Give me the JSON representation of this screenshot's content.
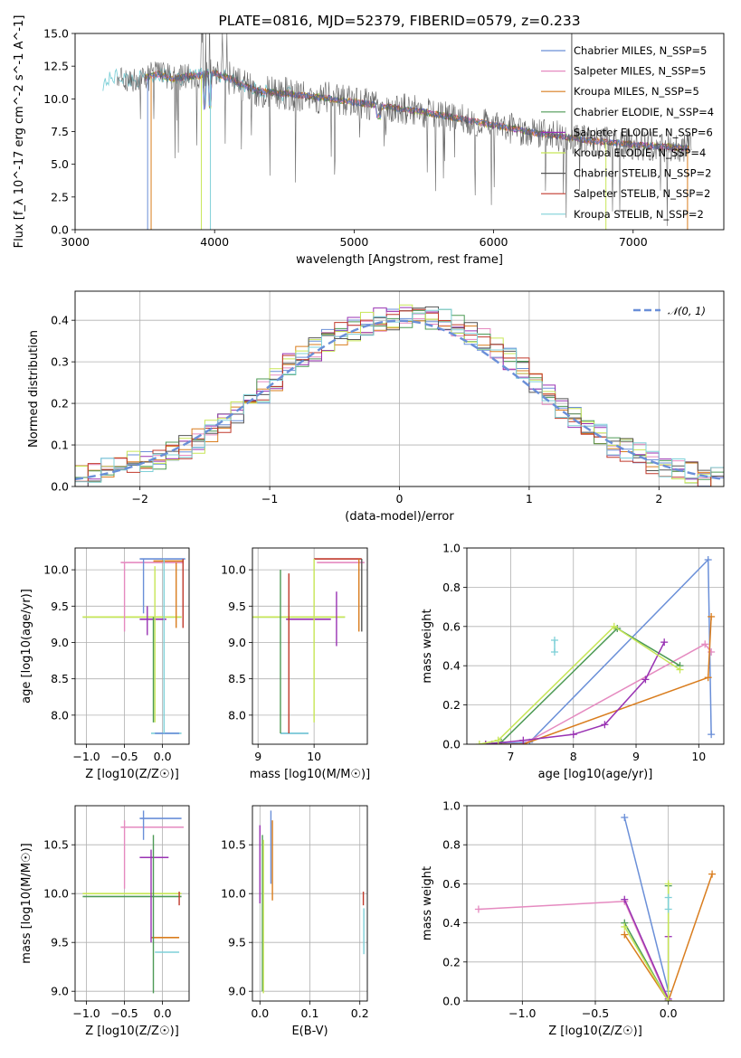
{
  "figure": {
    "title": "PLATE=0816, MJD=52379, FIBERID=0579, z=0.233"
  },
  "chart_data": [
    {
      "type": "line",
      "panel": "spectrum",
      "title": "PLATE=0816, MJD=52379, FIBERID=0579, z=0.233",
      "xlabel": "wavelength [Angstrom, rest frame]",
      "ylabel": "Flux [f_λ 10^-17 erg cm^-2 s^-1 A^-1]",
      "xlim": [
        3000,
        7650
      ],
      "ylim": [
        0,
        15
      ],
      "xticks": [
        3000,
        4000,
        5000,
        6000,
        7000
      ],
      "yticks": [
        0.0,
        2.5,
        5.0,
        7.5,
        10.0,
        12.5,
        15.0
      ],
      "grid": false,
      "legend_placement": "upper-right",
      "series": [
        {
          "name": "Chabrier MILES, N_SSP=5",
          "color": "#6a8fd8"
        },
        {
          "name": "Salpeter MILES, N_SSP=5",
          "color": "#e58ac0"
        },
        {
          "name": "Kroupa MILES, N_SSP=5",
          "color": "#d97d1e"
        },
        {
          "name": "Chabrier ELODIE, N_SSP=4",
          "color": "#4d9a55"
        },
        {
          "name": "Salpeter ELODIE, N_SSP=6",
          "color": "#9932b3"
        },
        {
          "name": "Kroupa ELODIE, N_SSP=4",
          "color": "#c7e656"
        },
        {
          "name": "Chabrier STELIB, N_SSP=2",
          "color": "#555555"
        },
        {
          "name": "Salpeter STELIB, N_SSP=2",
          "color": "#c0392b"
        },
        {
          "name": "Kroupa STELIB, N_SSP=2",
          "color": "#7fd0d8"
        }
      ],
      "continuum_points": {
        "x": [
          3200,
          3300,
          3400,
          3500,
          3600,
          3700,
          3800,
          3900,
          4000,
          4100,
          4200,
          4300,
          4400,
          4500,
          4700,
          4900,
          5100,
          5300,
          5500,
          5700,
          5900,
          6100,
          6300,
          6500,
          6700,
          6900,
          7100,
          7300,
          7400
        ],
        "y": [
          11.2,
          11.8,
          11.4,
          11.6,
          11.9,
          11.5,
          11.7,
          11.8,
          12.0,
          11.6,
          11.1,
          10.6,
          10.5,
          10.4,
          10.2,
          9.9,
          9.6,
          9.3,
          9.0,
          8.6,
          8.2,
          7.8,
          7.4,
          7.1,
          6.8,
          6.6,
          6.4,
          6.3,
          6.2
        ]
      }
    },
    {
      "type": "bar",
      "panel": "residual-histogram",
      "xlabel": "(data-model)/error",
      "ylabel": "Normed distribution",
      "xlim": [
        -2.5,
        2.5
      ],
      "ylim": [
        0,
        0.47
      ],
      "xticks": [
        -2,
        -1,
        0,
        1,
        2
      ],
      "yticks": [
        0.0,
        0.1,
        0.2,
        0.3,
        0.4
      ],
      "grid": true,
      "legend_placement": "upper-right",
      "legend": [
        "𝒩(0, 1)"
      ],
      "bin_edges": [
        -2.5,
        -2.4,
        -2.3,
        -2.2,
        -2.1,
        -2.0,
        -1.9,
        -1.8,
        -1.7,
        -1.6,
        -1.5,
        -1.4,
        -1.3,
        -1.2,
        -1.1,
        -1.0,
        -0.9,
        -0.8,
        -0.7,
        -0.6,
        -0.5,
        -0.4,
        -0.3,
        -0.2,
        -0.1,
        0.0,
        0.1,
        0.2,
        0.3,
        0.4,
        0.5,
        0.6,
        0.7,
        0.8,
        0.9,
        1.0,
        1.1,
        1.2,
        1.3,
        1.4,
        1.5,
        1.6,
        1.7,
        1.8,
        1.9,
        2.0,
        2.1,
        2.2,
        2.3,
        2.4,
        2.5
      ],
      "envelope": [
        0.02,
        0.03,
        0.04,
        0.045,
        0.055,
        0.06,
        0.07,
        0.08,
        0.095,
        0.11,
        0.13,
        0.15,
        0.18,
        0.2,
        0.23,
        0.26,
        0.29,
        0.31,
        0.33,
        0.35,
        0.365,
        0.38,
        0.39,
        0.4,
        0.405,
        0.41,
        0.41,
        0.405,
        0.4,
        0.39,
        0.37,
        0.35,
        0.33,
        0.31,
        0.28,
        0.25,
        0.22,
        0.19,
        0.17,
        0.14,
        0.12,
        0.1,
        0.09,
        0.075,
        0.06,
        0.05,
        0.04,
        0.035,
        0.025,
        0.02
      ],
      "normal_pdf": {
        "mean": 0,
        "sigma": 1
      }
    },
    {
      "type": "scatter",
      "panel": "age-vs-Z",
      "xlabel": "Z [log10(Z/Z☉)]",
      "ylabel": "age [log10(age/yr)]",
      "xlim": [
        -1.15,
        0.35
      ],
      "ylim": [
        7.6,
        10.3
      ],
      "xticks": [
        -1.0,
        -0.5,
        0.0
      ],
      "yticks": [
        8.0,
        8.5,
        9.0,
        9.5,
        10.0
      ],
      "grid": true,
      "hbars": [
        {
          "color": "#6a8fd8",
          "x1": -0.3,
          "x2": 0.3,
          "y": 10.15
        },
        {
          "color": "#e58ac0",
          "x1": -0.55,
          "x2": 0.28,
          "y": 10.1
        },
        {
          "color": "#d97d1e",
          "x1": -0.12,
          "x2": 0.28,
          "y": 10.12
        },
        {
          "color": "#4d9a55",
          "x1": -1.05,
          "x2": 0.25,
          "y": 9.35
        },
        {
          "color": "#c7e656",
          "x1": -1.05,
          "x2": 0.25,
          "y": 9.35
        },
        {
          "color": "#9932b3",
          "x1": -0.3,
          "x2": 0.05,
          "y": 9.32
        },
        {
          "color": "#7fd0d8",
          "x1": -0.15,
          "x2": 0.25,
          "y": 7.75
        },
        {
          "color": "#6a8fd8",
          "x1": -0.1,
          "x2": 0.22,
          "y": 7.75
        }
      ],
      "vbars": [
        {
          "color": "#6a8fd8",
          "x": -0.25,
          "y1": 9.4,
          "y2": 10.15
        },
        {
          "color": "#e58ac0",
          "x": -0.5,
          "y1": 9.15,
          "y2": 10.1
        },
        {
          "color": "#d97d1e",
          "x": 0.18,
          "y1": 9.2,
          "y2": 10.1
        },
        {
          "color": "#4d9a55",
          "x": -0.12,
          "y1": 7.9,
          "y2": 9.35
        },
        {
          "color": "#9932b3",
          "x": -0.2,
          "y1": 9.1,
          "y2": 9.5
        },
        {
          "color": "#c0392b",
          "x": 0.27,
          "y1": 9.2,
          "y2": 10.15
        },
        {
          "color": "#7fd0d8",
          "x": 0.02,
          "y1": 7.75,
          "y2": 10.15
        },
        {
          "color": "#c7e656",
          "x": -0.1,
          "y1": 7.9,
          "y2": 10.05
        }
      ]
    },
    {
      "type": "scatter",
      "panel": "age-vs-mass",
      "xlabel": "mass [log10(M/M☉)]",
      "ylabel": "",
      "xlim": [
        8.9,
        10.95
      ],
      "ylim": [
        7.6,
        10.3
      ],
      "xticks": [
        9,
        10
      ],
      "yticks": [
        8.0,
        8.5,
        9.0,
        9.5,
        10.0
      ],
      "grid": true,
      "hbars": [
        {
          "color": "#4d9a55",
          "x1": 8.9,
          "x2": 10.55,
          "y": 9.35
        },
        {
          "color": "#c7e656",
          "x1": 8.9,
          "x2": 10.55,
          "y": 9.35
        },
        {
          "color": "#9932b3",
          "x1": 9.5,
          "x2": 10.3,
          "y": 9.32
        },
        {
          "color": "#e58ac0",
          "x1": 10.05,
          "x2": 10.9,
          "y": 10.1
        },
        {
          "color": "#c0392b",
          "x1": 10.0,
          "x2": 10.85,
          "y": 10.15
        },
        {
          "color": "#6a8fd8",
          "x1": 9.4,
          "x2": 9.9,
          "y": 7.75
        },
        {
          "color": "#7fd0d8",
          "x1": 9.4,
          "x2": 9.9,
          "y": 7.75
        }
      ],
      "vbars": [
        {
          "color": "#4d9a55",
          "x": 9.4,
          "y1": 7.75,
          "y2": 10.0
        },
        {
          "color": "#c0392b",
          "x": 9.55,
          "y1": 7.75,
          "y2": 9.95
        },
        {
          "color": "#c7e656",
          "x": 10.0,
          "y1": 7.9,
          "y2": 10.15
        },
        {
          "color": "#9932b3",
          "x": 10.4,
          "y1": 8.95,
          "y2": 9.7
        },
        {
          "color": "#d97d1e",
          "x": 10.8,
          "y1": 9.15,
          "y2": 10.15
        },
        {
          "color": "#555555",
          "x": 10.85,
          "y1": 9.15,
          "y2": 10.15
        }
      ]
    },
    {
      "type": "line",
      "panel": "mass-weight-vs-age",
      "xlabel": "age [log10(age/yr)]",
      "ylabel": "mass weight",
      "xlim": [
        6.3,
        10.4
      ],
      "ylim": [
        0,
        1
      ],
      "xticks": [
        7,
        8,
        9,
        10
      ],
      "yticks": [
        0.0,
        0.2,
        0.4,
        0.6,
        0.8,
        1.0
      ],
      "grid": true,
      "series": [
        {
          "name": "",
          "color": "#6a8fd8",
          "x": [
            6.7,
            7.3,
            10.15,
            10.2
          ],
          "y": [
            0.0,
            0.01,
            0.94,
            0.05
          ]
        },
        {
          "name": "",
          "color": "#e58ac0",
          "x": [
            6.7,
            7.2,
            10.1,
            10.2
          ],
          "y": [
            0.0,
            0.0,
            0.51,
            0.47
          ]
        },
        {
          "name": "",
          "color": "#d97d1e",
          "x": [
            6.6,
            7.2,
            10.15,
            10.2
          ],
          "y": [
            0.0,
            0.0,
            0.34,
            0.65
          ]
        },
        {
          "name": "",
          "color": "#4d9a55",
          "x": [
            6.6,
            6.85,
            8.7,
            9.7
          ],
          "y": [
            0.0,
            0.01,
            0.59,
            0.4
          ]
        },
        {
          "name": "",
          "color": "#9932b3",
          "x": [
            6.6,
            7.2,
            8.0,
            8.5,
            9.15,
            9.45
          ],
          "y": [
            0.0,
            0.02,
            0.05,
            0.1,
            0.33,
            0.52
          ]
        },
        {
          "name": "",
          "color": "#c7e656",
          "x": [
            6.5,
            6.8,
            8.65,
            9.7
          ],
          "y": [
            0.0,
            0.02,
            0.6,
            0.38
          ]
        },
        {
          "name": "",
          "color": "#7fd0d8",
          "x": [
            7.7,
            7.7
          ],
          "y": [
            0.47,
            0.53
          ]
        }
      ]
    },
    {
      "type": "scatter",
      "panel": "mass-vs-Z",
      "xlabel": "Z [log10(Z/Z☉)]",
      "ylabel": "mass [log10(M/M☉)]",
      "xlim": [
        -1.15,
        0.35
      ],
      "ylim": [
        8.9,
        10.9
      ],
      "xticks": [
        -1.0,
        -0.5,
        0.0
      ],
      "yticks": [
        9.0,
        9.5,
        10.0,
        10.5
      ],
      "grid": true,
      "hbars": [
        {
          "color": "#6a8fd8",
          "x1": -0.3,
          "x2": 0.25,
          "y": 10.77
        },
        {
          "color": "#e58ac0",
          "x1": -0.55,
          "x2": 0.28,
          "y": 10.68
        },
        {
          "color": "#4d9a55",
          "x1": -1.05,
          "x2": 0.25,
          "y": 9.97
        },
        {
          "color": "#c7e656",
          "x1": -1.05,
          "x2": 0.25,
          "y": 10.0
        },
        {
          "color": "#9932b3",
          "x1": -0.3,
          "x2": 0.08,
          "y": 10.37
        },
        {
          "color": "#d97d1e",
          "x1": -0.15,
          "x2": 0.22,
          "y": 9.55
        },
        {
          "color": "#7fd0d8",
          "x1": -0.1,
          "x2": 0.22,
          "y": 9.4
        }
      ],
      "vbars": [
        {
          "color": "#6a8fd8",
          "x": -0.25,
          "y1": 10.55,
          "y2": 10.85
        },
        {
          "color": "#e58ac0",
          "x": -0.5,
          "y1": 10.05,
          "y2": 10.75
        },
        {
          "color": "#9932b3",
          "x": -0.15,
          "y1": 9.5,
          "y2": 10.45
        },
        {
          "color": "#4d9a55",
          "x": -0.12,
          "y1": 8.98,
          "y2": 10.6
        },
        {
          "color": "#c0392b",
          "x": 0.22,
          "y1": 9.88,
          "y2": 10.02
        }
      ]
    },
    {
      "type": "scatter",
      "panel": "mass-vs-EBV",
      "xlabel": "E(B-V)",
      "ylabel": "",
      "xlim": [
        -0.015,
        0.215
      ],
      "ylim": [
        8.9,
        10.9
      ],
      "xticks": [
        0.0,
        0.1,
        0.2
      ],
      "yticks": [
        9.0,
        9.5,
        10.0,
        10.5
      ],
      "grid": true,
      "vbars": [
        {
          "color": "#9932b3",
          "x": 0.0,
          "y1": 9.9,
          "y2": 10.7
        },
        {
          "color": "#4d9a55",
          "x": 0.005,
          "y1": 9.0,
          "y2": 10.6
        },
        {
          "color": "#c7e656",
          "x": 0.007,
          "y1": 8.98,
          "y2": 10.55
        },
        {
          "color": "#6a8fd8",
          "x": 0.022,
          "y1": 10.1,
          "y2": 10.85
        },
        {
          "color": "#d97d1e",
          "x": 0.025,
          "y1": 9.93,
          "y2": 10.75
        },
        {
          "color": "#c0392b",
          "x": 0.207,
          "y1": 9.88,
          "y2": 10.02
        },
        {
          "color": "#7fd0d8",
          "x": 0.208,
          "y1": 9.38,
          "y2": 9.85
        }
      ]
    },
    {
      "type": "line",
      "panel": "mass-weight-vs-Z",
      "xlabel": "Z [log10(Z/Z☉)]",
      "ylabel": "mass weight",
      "xlim": [
        -1.38,
        0.38
      ],
      "ylim": [
        0,
        1
      ],
      "xticks": [
        -1.0,
        -0.5,
        0.0
      ],
      "yticks": [
        0.0,
        0.2,
        0.4,
        0.6,
        0.8,
        1.0
      ],
      "grid": true,
      "series": [
        {
          "name": "",
          "color": "#6a8fd8",
          "x": [
            -0.3,
            0.0,
            0.0
          ],
          "y": [
            0.94,
            0.05,
            0.0
          ]
        },
        {
          "name": "",
          "color": "#e58ac0",
          "x": [
            -1.3,
            -0.3,
            0.0
          ],
          "y": [
            0.47,
            0.51,
            0.0
          ]
        },
        {
          "name": "",
          "color": "#d97d1e",
          "x": [
            -0.3,
            0.0,
            0.3
          ],
          "y": [
            0.34,
            0.0,
            0.65
          ]
        },
        {
          "name": "",
          "color": "#4d9a55",
          "x": [
            -0.3,
            0.0,
            0.0
          ],
          "y": [
            0.4,
            0.0,
            0.59
          ]
        },
        {
          "name": "",
          "color": "#9932b3",
          "x": [
            -0.3,
            0.0,
            0.0
          ],
          "y": [
            0.52,
            0.01,
            0.33
          ]
        },
        {
          "name": "",
          "color": "#c7e656",
          "x": [
            -0.3,
            0.0,
            0.0
          ],
          "y": [
            0.38,
            0.0,
            0.6
          ]
        },
        {
          "name": "",
          "color": "#7fd0d8",
          "x": [
            0.0,
            0.0
          ],
          "y": [
            0.47,
            0.53
          ]
        }
      ]
    }
  ]
}
